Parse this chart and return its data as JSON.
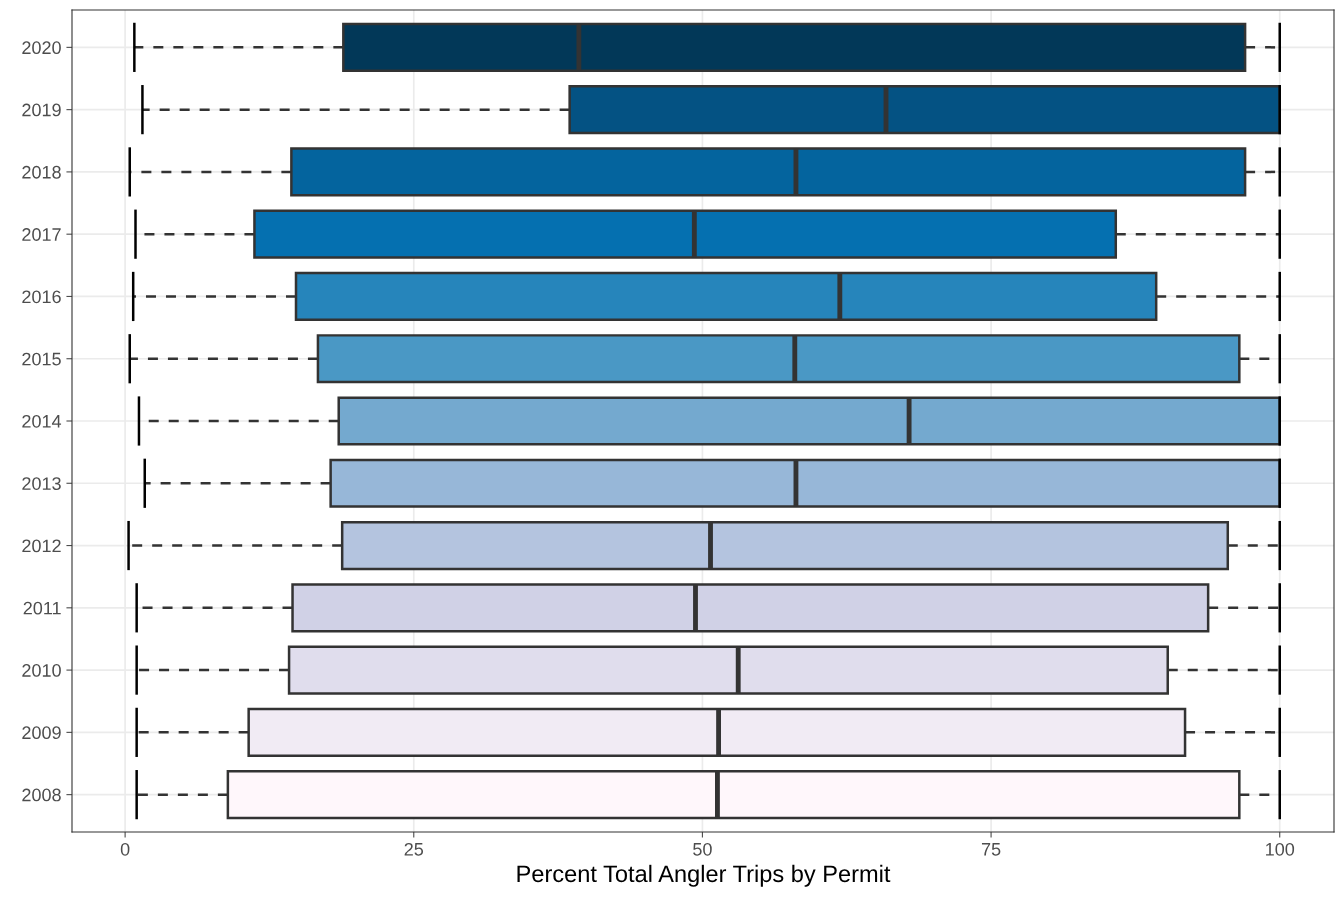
{
  "chart_data": {
    "type": "box",
    "orientation": "horizontal",
    "xlabel": "Percent Total Angler Trips by Permit",
    "categories": [
      "2020",
      "2019",
      "2018",
      "2017",
      "2016",
      "2015",
      "2014",
      "2013",
      "2012",
      "2011",
      "2010",
      "2009",
      "2008"
    ],
    "boxes": [
      {
        "low": 0.8,
        "q1": 18.9,
        "median": 39.3,
        "q3": 97.0,
        "high": 100
      },
      {
        "low": 1.5,
        "q1": 38.5,
        "median": 65.9,
        "q3": 100,
        "high": 100
      },
      {
        "low": 0.4,
        "q1": 14.4,
        "median": 58.1,
        "q3": 97.0,
        "high": 100
      },
      {
        "low": 0.9,
        "q1": 11.2,
        "median": 49.3,
        "q3": 85.8,
        "high": 100
      },
      {
        "low": 0.7,
        "q1": 14.8,
        "median": 61.9,
        "q3": 89.3,
        "high": 100
      },
      {
        "low": 0.4,
        "q1": 16.7,
        "median": 58.0,
        "q3": 96.5,
        "high": 100
      },
      {
        "low": 1.2,
        "q1": 18.5,
        "median": 67.9,
        "q3": 100,
        "high": 100
      },
      {
        "low": 1.7,
        "q1": 17.8,
        "median": 58.1,
        "q3": 100,
        "high": 100
      },
      {
        "low": 0.3,
        "q1": 18.8,
        "median": 50.7,
        "q3": 95.5,
        "high": 100
      },
      {
        "low": 1.0,
        "q1": 14.5,
        "median": 49.4,
        "q3": 93.8,
        "high": 100
      },
      {
        "low": 1.0,
        "q1": 14.2,
        "median": 53.1,
        "q3": 90.3,
        "high": 100
      },
      {
        "low": 1.0,
        "q1": 10.7,
        "median": 51.4,
        "q3": 91.8,
        "high": 100
      },
      {
        "low": 1.0,
        "q1": 8.9,
        "median": 51.3,
        "q3": 96.5,
        "high": 100
      }
    ],
    "colors": [
      "#023858",
      "#045283",
      "#04649e",
      "#0570b0",
      "#2685bb",
      "#4a98c5",
      "#74a9cf",
      "#97b7d8",
      "#b4c4df",
      "#d0d1e6",
      "#e0dded",
      "#f1ebf4",
      "#fff7fb"
    ],
    "xlim": [
      -4.6,
      104.7
    ],
    "xticks": [
      0,
      25,
      50,
      75,
      100
    ],
    "grid": true,
    "line_style": "dashed"
  }
}
